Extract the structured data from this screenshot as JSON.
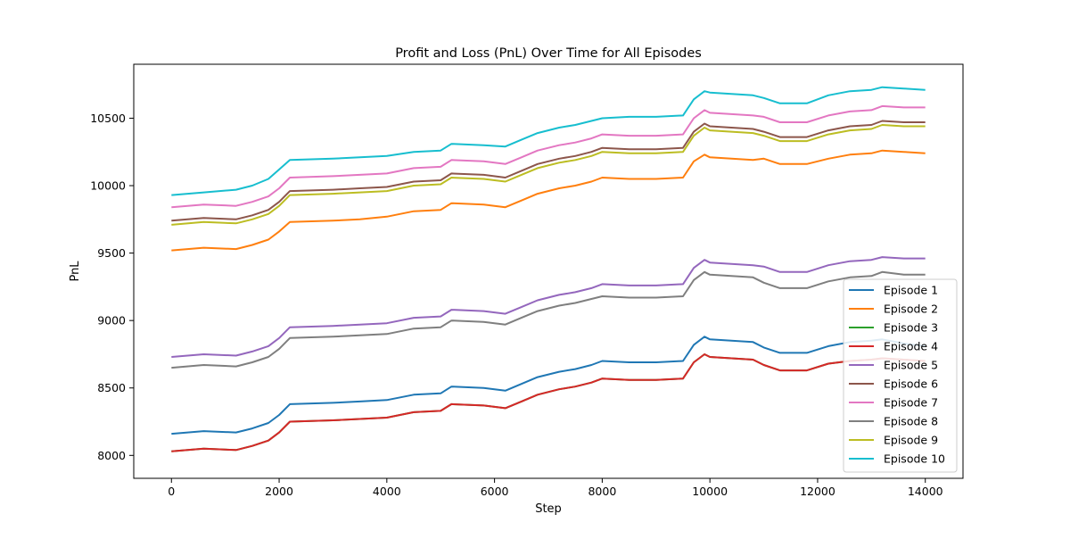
{
  "chart_data": {
    "type": "line",
    "title": "Profit and Loss (PnL) Over Time for All Episodes",
    "xlabel": "Step",
    "ylabel": "PnL",
    "xlim": [
      -700,
      14700
    ],
    "ylim": [
      7830,
      10900
    ],
    "xticks": [
      0,
      2000,
      4000,
      6000,
      8000,
      10000,
      12000,
      14000
    ],
    "yticks": [
      8000,
      8500,
      9000,
      9500,
      10000,
      10500
    ],
    "grid": false,
    "legend_position": "lower right",
    "series": [
      {
        "name": "Episode 1",
        "color": "#1f77b4",
        "x": [
          0,
          600,
          1200,
          1500,
          1800,
          2000,
          2200,
          3000,
          3500,
          4000,
          4500,
          5000,
          5200,
          5800,
          6200,
          6500,
          6800,
          7200,
          7500,
          7800,
          8000,
          8500,
          9000,
          9500,
          9700,
          9900,
          10000,
          10400,
          10800,
          11000,
          11300,
          11800,
          12200,
          12600,
          13000,
          13200,
          13600,
          14000
        ],
        "values": [
          8160,
          8180,
          8170,
          8200,
          8240,
          8300,
          8380,
          8390,
          8400,
          8410,
          8450,
          8460,
          8510,
          8500,
          8480,
          8530,
          8580,
          8620,
          8640,
          8670,
          8700,
          8690,
          8690,
          8700,
          8820,
          8880,
          8860,
          8850,
          8840,
          8800,
          8760,
          8760,
          8810,
          8840,
          8850,
          8860,
          8830,
          8810
        ]
      },
      {
        "name": "Episode 2",
        "color": "#ff7f0e",
        "x": [
          0,
          600,
          1200,
          1500,
          1800,
          2000,
          2200,
          3000,
          3500,
          4000,
          4500,
          5000,
          5200,
          5800,
          6200,
          6500,
          6800,
          7200,
          7500,
          7800,
          8000,
          8500,
          9000,
          9500,
          9700,
          9900,
          10000,
          10400,
          10800,
          11000,
          11300,
          11800,
          12200,
          12600,
          13000,
          13200,
          13600,
          14000
        ],
        "values": [
          9520,
          9540,
          9530,
          9560,
          9600,
          9660,
          9730,
          9740,
          9750,
          9770,
          9810,
          9820,
          9870,
          9860,
          9840,
          9890,
          9940,
          9980,
          10000,
          10030,
          10060,
          10050,
          10050,
          10060,
          10180,
          10230,
          10210,
          10200,
          10190,
          10200,
          10160,
          10160,
          10200,
          10230,
          10240,
          10260,
          10250,
          10240
        ]
      },
      {
        "name": "Episode 3",
        "color": "#2ca02c",
        "x": [
          0,
          600,
          1200,
          1500,
          1800,
          2000,
          2200,
          3000,
          3500,
          4000,
          4500,
          5000,
          5200,
          5800,
          6200,
          6500,
          6800,
          7200,
          7500,
          7800,
          8000,
          8500,
          9000,
          9500,
          9700,
          9900,
          10000,
          10400,
          10800,
          11000,
          11300,
          11800,
          12200,
          12600,
          13000,
          13200,
          13600,
          14000
        ],
        "values": [
          8030,
          8050,
          8040,
          8070,
          8110,
          8170,
          8250,
          8260,
          8270,
          8280,
          8320,
          8330,
          8380,
          8370,
          8350,
          8400,
          8450,
          8490,
          8510,
          8540,
          8570,
          8560,
          8560,
          8570,
          8690,
          8750,
          8730,
          8720,
          8710,
          8670,
          8630,
          8630,
          8680,
          8700,
          8710,
          8720,
          8710,
          8700
        ]
      },
      {
        "name": "Episode 4",
        "color": "#d62728",
        "x": [
          0,
          600,
          1200,
          1500,
          1800,
          2000,
          2200,
          3000,
          3500,
          4000,
          4500,
          5000,
          5200,
          5800,
          6200,
          6500,
          6800,
          7200,
          7500,
          7800,
          8000,
          8500,
          9000,
          9500,
          9700,
          9900,
          10000,
          10400,
          10800,
          11000,
          11300,
          11800,
          12200,
          12600,
          13000,
          13200,
          13600,
          14000
        ],
        "values": [
          8030,
          8050,
          8040,
          8070,
          8110,
          8170,
          8250,
          8260,
          8270,
          8280,
          8320,
          8330,
          8380,
          8370,
          8350,
          8400,
          8450,
          8490,
          8510,
          8540,
          8570,
          8560,
          8560,
          8570,
          8690,
          8750,
          8730,
          8720,
          8710,
          8670,
          8630,
          8630,
          8680,
          8700,
          8710,
          8720,
          8710,
          8700
        ]
      },
      {
        "name": "Episode 5",
        "color": "#9467bd",
        "x": [
          0,
          600,
          1200,
          1500,
          1800,
          2000,
          2200,
          3000,
          3500,
          4000,
          4500,
          5000,
          5200,
          5800,
          6200,
          6500,
          6800,
          7200,
          7500,
          7800,
          8000,
          8500,
          9000,
          9500,
          9700,
          9900,
          10000,
          10400,
          10800,
          11000,
          11300,
          11800,
          12200,
          12600,
          13000,
          13200,
          13600,
          14000
        ],
        "values": [
          8730,
          8750,
          8740,
          8770,
          8810,
          8870,
          8950,
          8960,
          8970,
          8980,
          9020,
          9030,
          9080,
          9070,
          9050,
          9100,
          9150,
          9190,
          9210,
          9240,
          9270,
          9260,
          9260,
          9270,
          9390,
          9450,
          9430,
          9420,
          9410,
          9400,
          9360,
          9360,
          9410,
          9440,
          9450,
          9470,
          9460,
          9460
        ]
      },
      {
        "name": "Episode 6",
        "color": "#8c564b",
        "x": [
          0,
          600,
          1200,
          1500,
          1800,
          2000,
          2200,
          3000,
          3500,
          4000,
          4500,
          5000,
          5200,
          5800,
          6200,
          6500,
          6800,
          7200,
          7500,
          7800,
          8000,
          8500,
          9000,
          9500,
          9700,
          9900,
          10000,
          10400,
          10800,
          11000,
          11300,
          11800,
          12200,
          12600,
          13000,
          13200,
          13600,
          14000
        ],
        "values": [
          9740,
          9760,
          9750,
          9780,
          9820,
          9880,
          9960,
          9970,
          9980,
          9990,
          10030,
          10040,
          10090,
          10080,
          10060,
          10110,
          10160,
          10200,
          10220,
          10250,
          10280,
          10270,
          10270,
          10280,
          10400,
          10460,
          10440,
          10430,
          10420,
          10400,
          10360,
          10360,
          10410,
          10440,
          10450,
          10480,
          10470,
          10470
        ]
      },
      {
        "name": "Episode 7",
        "color": "#e377c2",
        "x": [
          0,
          600,
          1200,
          1500,
          1800,
          2000,
          2200,
          3000,
          3500,
          4000,
          4500,
          5000,
          5200,
          5800,
          6200,
          6500,
          6800,
          7200,
          7500,
          7800,
          8000,
          8500,
          9000,
          9500,
          9700,
          9900,
          10000,
          10400,
          10800,
          11000,
          11300,
          11800,
          12200,
          12600,
          13000,
          13200,
          13600,
          14000
        ],
        "values": [
          9840,
          9860,
          9850,
          9880,
          9920,
          9980,
          10060,
          10070,
          10080,
          10090,
          10130,
          10140,
          10190,
          10180,
          10160,
          10210,
          10260,
          10300,
          10320,
          10350,
          10380,
          10370,
          10370,
          10380,
          10500,
          10560,
          10540,
          10530,
          10520,
          10510,
          10470,
          10470,
          10520,
          10550,
          10560,
          10590,
          10580,
          10580
        ]
      },
      {
        "name": "Episode 8",
        "color": "#7f7f7f",
        "x": [
          0,
          600,
          1200,
          1500,
          1800,
          2000,
          2200,
          3000,
          3500,
          4000,
          4500,
          5000,
          5200,
          5800,
          6200,
          6500,
          6800,
          7200,
          7500,
          7800,
          8000,
          8500,
          9000,
          9500,
          9700,
          9900,
          10000,
          10400,
          10800,
          11000,
          11300,
          11800,
          12200,
          12600,
          13000,
          13200,
          13600,
          14000
        ],
        "values": [
          8650,
          8670,
          8660,
          8690,
          8730,
          8790,
          8870,
          8880,
          8890,
          8900,
          8940,
          8950,
          9000,
          8990,
          8970,
          9020,
          9070,
          9110,
          9130,
          9160,
          9180,
          9170,
          9170,
          9180,
          9300,
          9360,
          9340,
          9330,
          9320,
          9280,
          9240,
          9240,
          9290,
          9320,
          9330,
          9360,
          9340,
          9340
        ]
      },
      {
        "name": "Episode 9",
        "color": "#bcbd22",
        "x": [
          0,
          600,
          1200,
          1500,
          1800,
          2000,
          2200,
          3000,
          3500,
          4000,
          4500,
          5000,
          5200,
          5800,
          6200,
          6500,
          6800,
          7200,
          7500,
          7800,
          8000,
          8500,
          9000,
          9500,
          9700,
          9900,
          10000,
          10400,
          10800,
          11000,
          11300,
          11800,
          12200,
          12600,
          13000,
          13200,
          13600,
          14000
        ],
        "values": [
          9710,
          9730,
          9720,
          9750,
          9790,
          9850,
          9930,
          9940,
          9950,
          9960,
          10000,
          10010,
          10060,
          10050,
          10030,
          10080,
          10130,
          10170,
          10190,
          10220,
          10250,
          10240,
          10240,
          10250,
          10370,
          10430,
          10410,
          10400,
          10390,
          10370,
          10330,
          10330,
          10380,
          10410,
          10420,
          10450,
          10440,
          10440
        ]
      },
      {
        "name": "Episode 10",
        "color": "#17becf",
        "x": [
          0,
          600,
          1200,
          1500,
          1800,
          2000,
          2200,
          3000,
          3500,
          4000,
          4500,
          5000,
          5200,
          5800,
          6200,
          6500,
          6800,
          7200,
          7500,
          7800,
          8000,
          8500,
          9000,
          9500,
          9700,
          9900,
          10000,
          10400,
          10800,
          11000,
          11300,
          11800,
          12200,
          12600,
          13000,
          13200,
          13600,
          14000
        ],
        "values": [
          9930,
          9950,
          9970,
          10000,
          10050,
          10120,
          10190,
          10200,
          10210,
          10220,
          10250,
          10260,
          10310,
          10300,
          10290,
          10340,
          10390,
          10430,
          10450,
          10480,
          10500,
          10510,
          10510,
          10520,
          10640,
          10700,
          10690,
          10680,
          10670,
          10650,
          10610,
          10610,
          10670,
          10700,
          10710,
          10730,
          10720,
          10710
        ]
      }
    ]
  }
}
